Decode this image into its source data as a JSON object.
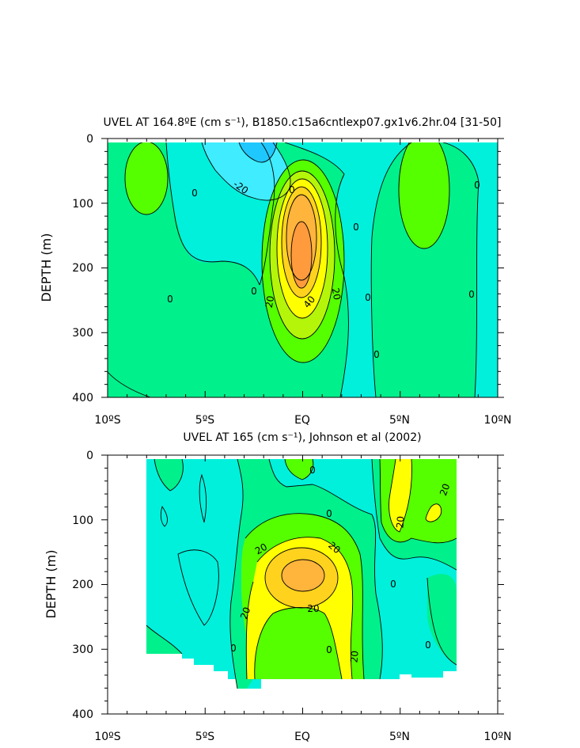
{
  "chart_data": [
    {
      "type": "heatmap",
      "title": "UVEL AT 164.8ºE (cm s⁻¹), B1850.c15a6cntlexp07.gx1v6.2hr.04 [31-50]",
      "ylabel": "DEPTH (m)",
      "xlabel": "",
      "x_ticks": [
        "10ºS",
        "5ºS",
        "EQ",
        "5ºN",
        "10ºN"
      ],
      "y_ticks": [
        "0",
        "100",
        "200",
        "300",
        "400"
      ],
      "xlim": [
        -10,
        10
      ],
      "ylim": [
        0,
        400
      ],
      "contour_labels": [
        "-20",
        "0",
        "0",
        "0",
        "0",
        "0",
        "0",
        "0",
        "0",
        "20",
        "20",
        "40"
      ],
      "levels": [
        -30,
        -20,
        -10,
        0,
        10,
        20,
        30,
        40,
        50,
        60
      ],
      "colors": [
        "#1ec8ff",
        "#40ecff",
        "#00f0dc",
        "#00f08c",
        "#55ff00",
        "#b4f50a",
        "#ffff00",
        "#ffd21e",
        "#ffb43c",
        "#ff9b3c"
      ],
      "features": [
        {
          "name": "equatorial undercurrent core",
          "x": 0.0,
          "depth": 180,
          "max_speed": 60
        },
        {
          "name": "westward surface flow",
          "x": -2.0,
          "depth": 10,
          "min_speed": -30
        },
        {
          "name": "eastward flow south",
          "x": -8.0,
          "depth": 55,
          "speed": 10
        },
        {
          "name": "eastward flow north",
          "x": 6.3,
          "depth": 80,
          "speed": 10
        }
      ]
    },
    {
      "type": "heatmap",
      "title": "UVEL AT 165 (cm s⁻¹), Johnson et al (2002)",
      "ylabel": "DEPTH (m)",
      "xlabel": "",
      "x_ticks": [
        "10ºS",
        "5ºS",
        "EQ",
        "5ºN",
        "10ºN"
      ],
      "y_ticks": [
        "0",
        "100",
        "200",
        "300",
        "400"
      ],
      "xlim": [
        -10,
        10
      ],
      "ylim": [
        0,
        400
      ],
      "data_extent_x": [
        -8,
        8
      ],
      "contour_labels": [
        "0",
        "0",
        "0",
        "0",
        "0",
        "0",
        "20",
        "20",
        "20",
        "20",
        "20",
        "20",
        "20"
      ],
      "levels": [
        -10,
        0,
        10,
        20,
        30,
        40
      ],
      "colors": [
        "#00f0dc",
        "#00f08c",
        "#55ff00",
        "#ffff00",
        "#ffd21e",
        "#ffb43c"
      ],
      "features": [
        {
          "name": "equatorial undercurrent core",
          "x": 0.0,
          "depth": 180,
          "max_speed": 40
        },
        {
          "name": "eastward jet north",
          "x": 5.3,
          "depth": 60,
          "speed": 25
        }
      ]
    }
  ]
}
